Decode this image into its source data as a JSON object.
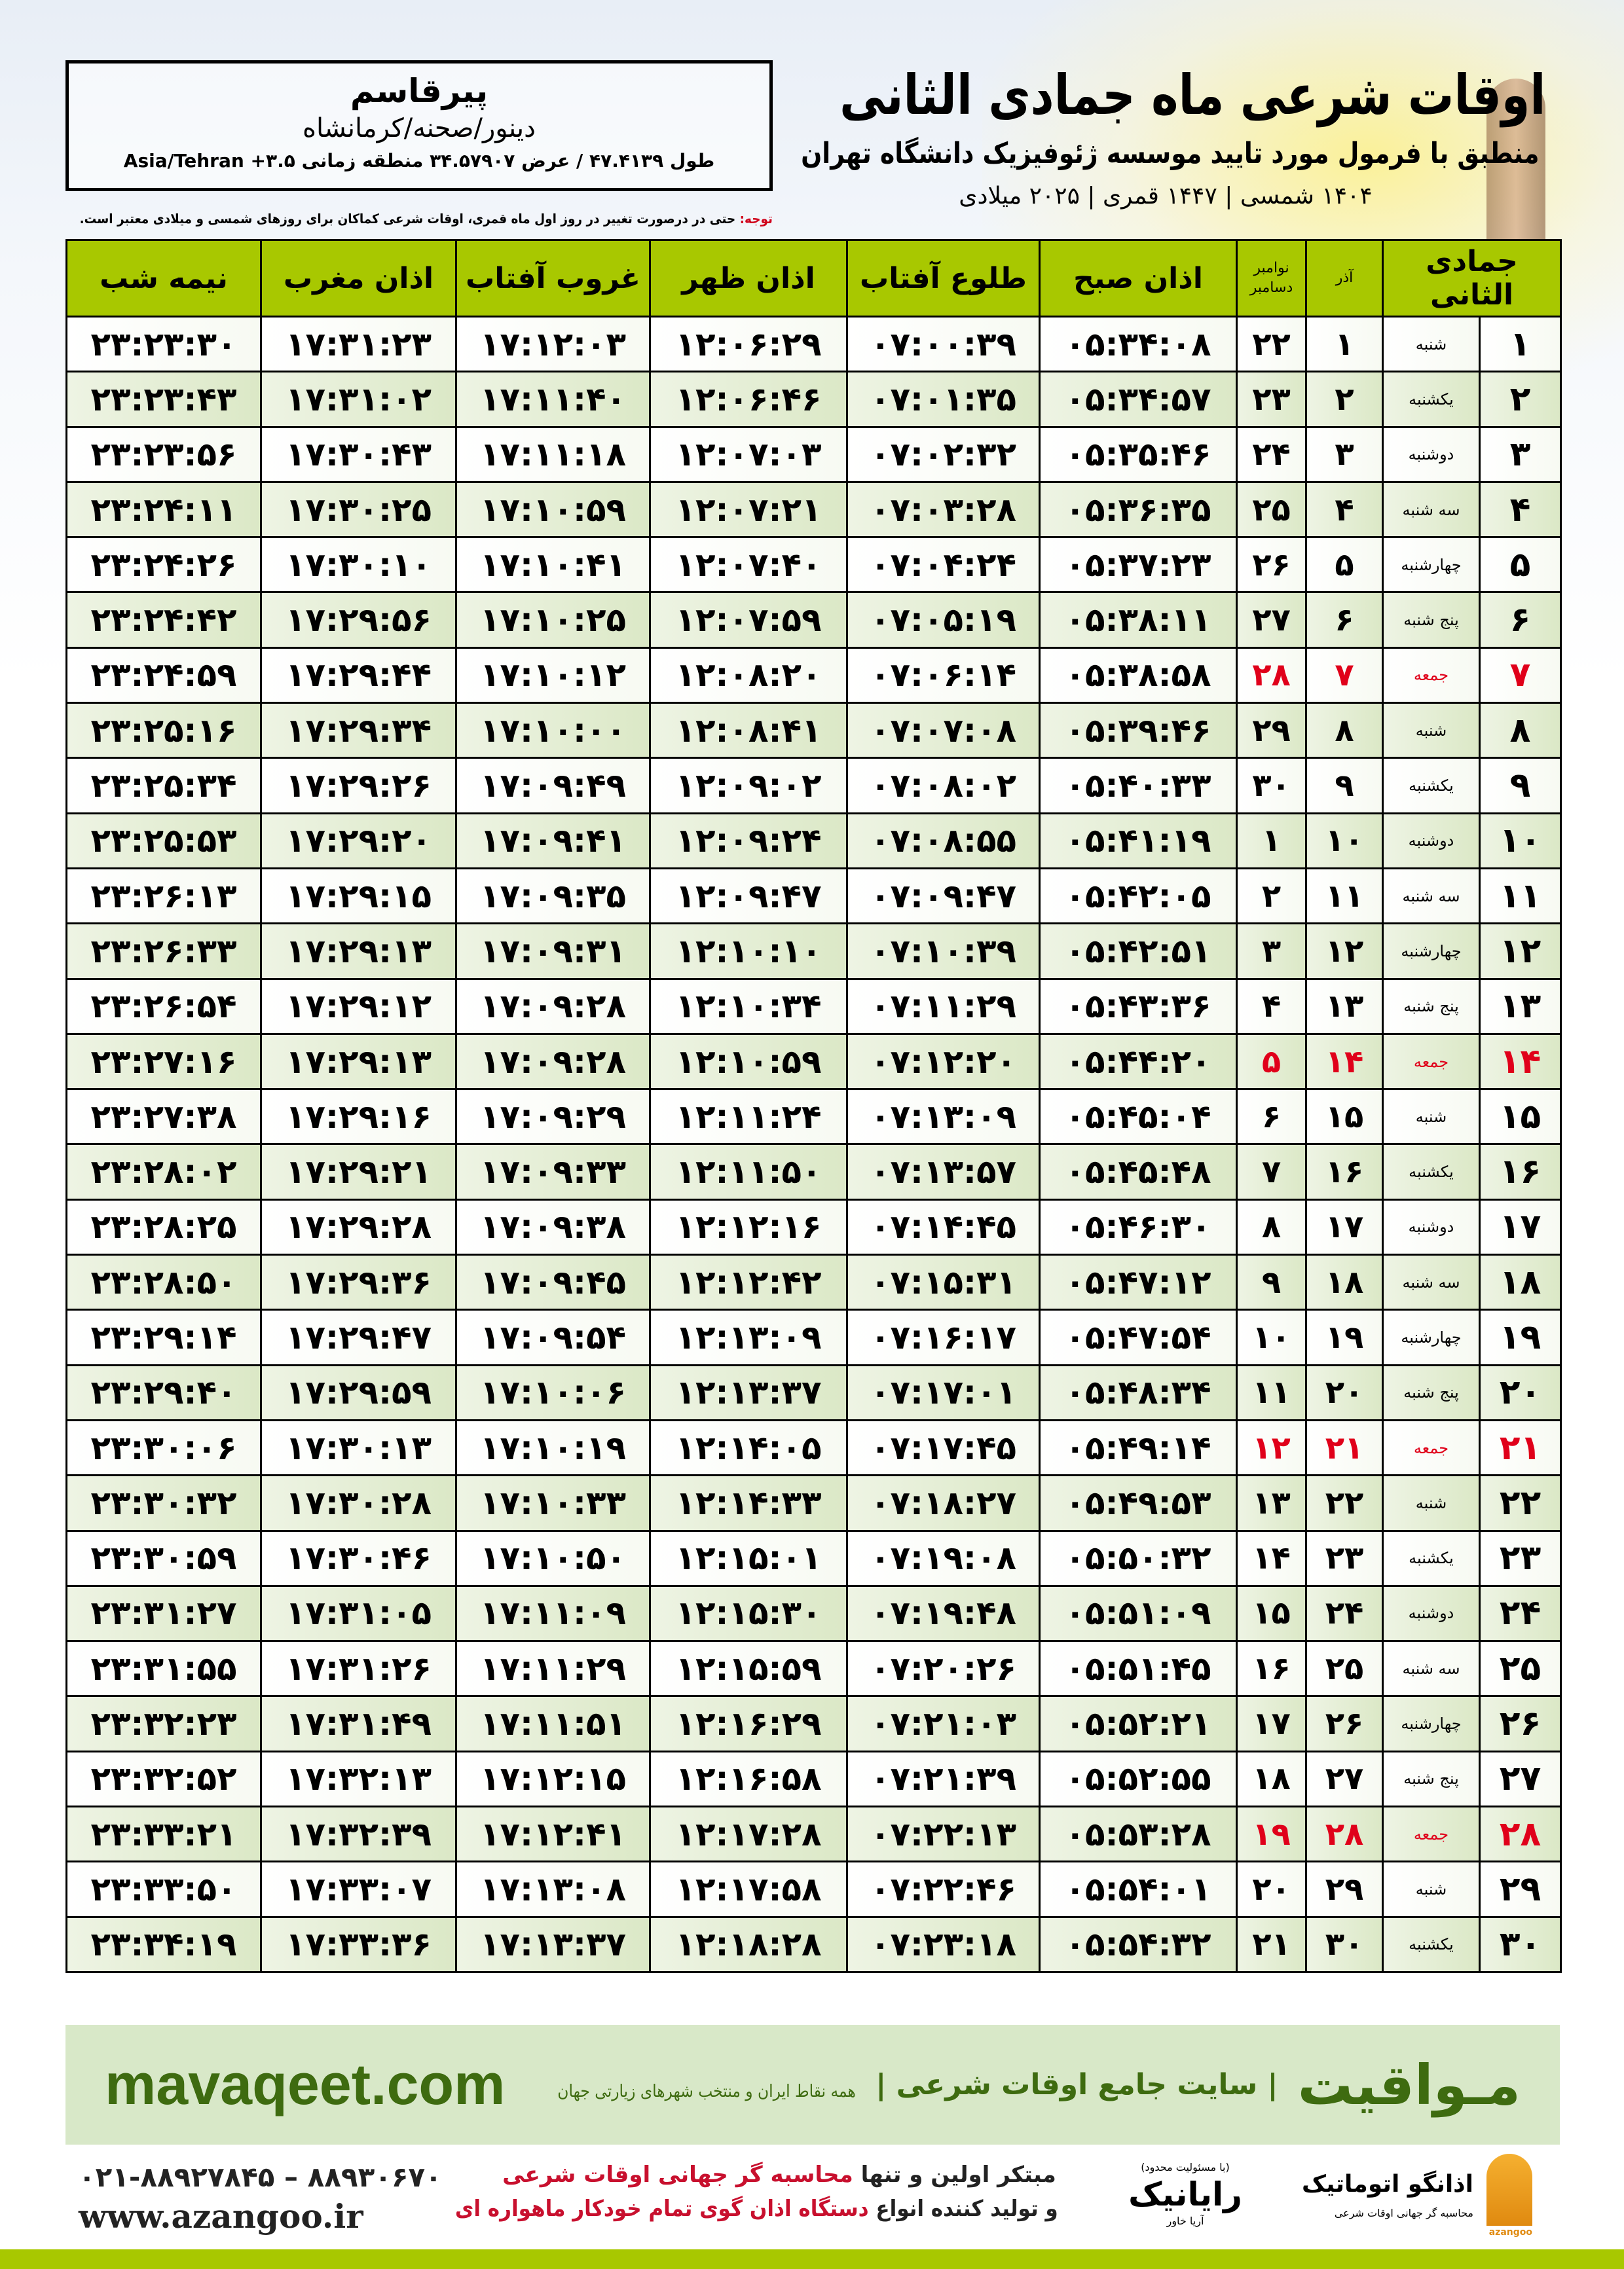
{
  "location": {
    "city": "پیرقاسم",
    "province": "دینور/صحنه/کرمانشاه",
    "coords": "طول ۴۷.۴۱۳۹ / عرض ۳۴.۵۷۹۰۷ منطقه زمانی ۳.۵+ Asia/Tehran"
  },
  "note": {
    "label": "توجه:",
    "text": " حتی در درصورت تغییر در روز اول ماه قمری، اوقات شرعی کماکان برای روزهای شمسی و میلادی معتبر است."
  },
  "header": {
    "title": "اوقات شرعی ماه جمادی الثانی",
    "subtitle": "منطبق با فرمول مورد تایید موسسه ژئوفیزیک دانشگاه تهران",
    "years": "۱۴۰۴ شمسی | ۱۴۴۷ قمری | ۲۰۲۵ میلادی"
  },
  "colors": {
    "header_green": "#a8c800",
    "holiday_red": "#e0001a",
    "brand_green": "#3e6b10"
  },
  "table": {
    "columns": {
      "hijri": "جمادی الثانی",
      "azar": "آذر",
      "greg_top": "نوامبر",
      "greg_bottom": "دسامبر",
      "fajr": "اذان صبح",
      "sunrise": "طلوع آفتاب",
      "dhuhr": "اذان ظهر",
      "sunset": "غروب آفتاب",
      "maghrib": "اذان مغرب",
      "midnight": "نیمه شب"
    },
    "rows": [
      [
        "۱",
        "شنبه",
        "۱",
        "۲۲",
        "۰۵:۳۴:۰۸",
        "۰۷:۰۰:۳۹",
        "۱۲:۰۶:۲۹",
        "۱۷:۱۲:۰۳",
        "۱۷:۳۱:۲۳",
        "۲۳:۲۳:۳۰",
        false
      ],
      [
        "۲",
        "یکشنبه",
        "۲",
        "۲۳",
        "۰۵:۳۴:۵۷",
        "۰۷:۰۱:۳۵",
        "۱۲:۰۶:۴۶",
        "۱۷:۱۱:۴۰",
        "۱۷:۳۱:۰۲",
        "۲۳:۲۳:۴۳",
        false
      ],
      [
        "۳",
        "دوشنبه",
        "۳",
        "۲۴",
        "۰۵:۳۵:۴۶",
        "۰۷:۰۲:۳۲",
        "۱۲:۰۷:۰۳",
        "۱۷:۱۱:۱۸",
        "۱۷:۳۰:۴۳",
        "۲۳:۲۳:۵۶",
        false
      ],
      [
        "۴",
        "سه شنبه",
        "۴",
        "۲۵",
        "۰۵:۳۶:۳۵",
        "۰۷:۰۳:۲۸",
        "۱۲:۰۷:۲۱",
        "۱۷:۱۰:۵۹",
        "۱۷:۳۰:۲۵",
        "۲۳:۲۴:۱۱",
        false
      ],
      [
        "۵",
        "چهارشنبه",
        "۵",
        "۲۶",
        "۰۵:۳۷:۲۳",
        "۰۷:۰۴:۲۴",
        "۱۲:۰۷:۴۰",
        "۱۷:۱۰:۴۱",
        "۱۷:۳۰:۱۰",
        "۲۳:۲۴:۲۶",
        false
      ],
      [
        "۶",
        "پنج شنبه",
        "۶",
        "۲۷",
        "۰۵:۳۸:۱۱",
        "۰۷:۰۵:۱۹",
        "۱۲:۰۷:۵۹",
        "۱۷:۱۰:۲۵",
        "۱۷:۲۹:۵۶",
        "۲۳:۲۴:۴۲",
        false
      ],
      [
        "۷",
        "جمعه",
        "۷",
        "۲۸",
        "۰۵:۳۸:۵۸",
        "۰۷:۰۶:۱۴",
        "۱۲:۰۸:۲۰",
        "۱۷:۱۰:۱۲",
        "۱۷:۲۹:۴۴",
        "۲۳:۲۴:۵۹",
        true
      ],
      [
        "۸",
        "شنبه",
        "۸",
        "۲۹",
        "۰۵:۳۹:۴۶",
        "۰۷:۰۷:۰۸",
        "۱۲:۰۸:۴۱",
        "۱۷:۱۰:۰۰",
        "۱۷:۲۹:۳۴",
        "۲۳:۲۵:۱۶",
        false
      ],
      [
        "۹",
        "یکشنبه",
        "۹",
        "۳۰",
        "۰۵:۴۰:۳۳",
        "۰۷:۰۸:۰۲",
        "۱۲:۰۹:۰۲",
        "۱۷:۰۹:۴۹",
        "۱۷:۲۹:۲۶",
        "۲۳:۲۵:۳۴",
        false
      ],
      [
        "۱۰",
        "دوشنبه",
        "۱۰",
        "۱",
        "۰۵:۴۱:۱۹",
        "۰۷:۰۸:۵۵",
        "۱۲:۰۹:۲۴",
        "۱۷:۰۹:۴۱",
        "۱۷:۲۹:۲۰",
        "۲۳:۲۵:۵۳",
        false
      ],
      [
        "۱۱",
        "سه شنبه",
        "۱۱",
        "۲",
        "۰۵:۴۲:۰۵",
        "۰۷:۰۹:۴۷",
        "۱۲:۰۹:۴۷",
        "۱۷:۰۹:۳۵",
        "۱۷:۲۹:۱۵",
        "۲۳:۲۶:۱۳",
        false
      ],
      [
        "۱۲",
        "چهارشنبه",
        "۱۲",
        "۳",
        "۰۵:۴۲:۵۱",
        "۰۷:۱۰:۳۹",
        "۱۲:۱۰:۱۰",
        "۱۷:۰۹:۳۱",
        "۱۷:۲۹:۱۳",
        "۲۳:۲۶:۳۳",
        false
      ],
      [
        "۱۳",
        "پنج شنبه",
        "۱۳",
        "۴",
        "۰۵:۴۳:۳۶",
        "۰۷:۱۱:۲۹",
        "۱۲:۱۰:۳۴",
        "۱۷:۰۹:۲۸",
        "۱۷:۲۹:۱۲",
        "۲۳:۲۶:۵۴",
        false
      ],
      [
        "۱۴",
        "جمعه",
        "۱۴",
        "۵",
        "۰۵:۴۴:۲۰",
        "۰۷:۱۲:۲۰",
        "۱۲:۱۰:۵۹",
        "۱۷:۰۹:۲۸",
        "۱۷:۲۹:۱۳",
        "۲۳:۲۷:۱۶",
        true
      ],
      [
        "۱۵",
        "شنبه",
        "۱۵",
        "۶",
        "۰۵:۴۵:۰۴",
        "۰۷:۱۳:۰۹",
        "۱۲:۱۱:۲۴",
        "۱۷:۰۹:۲۹",
        "۱۷:۲۹:۱۶",
        "۲۳:۲۷:۳۸",
        false
      ],
      [
        "۱۶",
        "یکشنبه",
        "۱۶",
        "۷",
        "۰۵:۴۵:۴۸",
        "۰۷:۱۳:۵۷",
        "۱۲:۱۱:۵۰",
        "۱۷:۰۹:۳۳",
        "۱۷:۲۹:۲۱",
        "۲۳:۲۸:۰۲",
        false
      ],
      [
        "۱۷",
        "دوشنبه",
        "۱۷",
        "۸",
        "۰۵:۴۶:۳۰",
        "۰۷:۱۴:۴۵",
        "۱۲:۱۲:۱۶",
        "۱۷:۰۹:۳۸",
        "۱۷:۲۹:۲۸",
        "۲۳:۲۸:۲۵",
        false
      ],
      [
        "۱۸",
        "سه شنبه",
        "۱۸",
        "۹",
        "۰۵:۴۷:۱۲",
        "۰۷:۱۵:۳۱",
        "۱۲:۱۲:۴۲",
        "۱۷:۰۹:۴۵",
        "۱۷:۲۹:۳۶",
        "۲۳:۲۸:۵۰",
        false
      ],
      [
        "۱۹",
        "چهارشنبه",
        "۱۹",
        "۱۰",
        "۰۵:۴۷:۵۴",
        "۰۷:۱۶:۱۷",
        "۱۲:۱۳:۰۹",
        "۱۷:۰۹:۵۴",
        "۱۷:۲۹:۴۷",
        "۲۳:۲۹:۱۴",
        false
      ],
      [
        "۲۰",
        "پنج شنبه",
        "۲۰",
        "۱۱",
        "۰۵:۴۸:۳۴",
        "۰۷:۱۷:۰۱",
        "۱۲:۱۳:۳۷",
        "۱۷:۱۰:۰۶",
        "۱۷:۲۹:۵۹",
        "۲۳:۲۹:۴۰",
        false
      ],
      [
        "۲۱",
        "جمعه",
        "۲۱",
        "۱۲",
        "۰۵:۴۹:۱۴",
        "۰۷:۱۷:۴۵",
        "۱۲:۱۴:۰۵",
        "۱۷:۱۰:۱۹",
        "۱۷:۳۰:۱۳",
        "۲۳:۳۰:۰۶",
        true
      ],
      [
        "۲۲",
        "شنبه",
        "۲۲",
        "۱۳",
        "۰۵:۴۹:۵۳",
        "۰۷:۱۸:۲۷",
        "۱۲:۱۴:۳۳",
        "۱۷:۱۰:۳۳",
        "۱۷:۳۰:۲۸",
        "۲۳:۳۰:۳۲",
        false
      ],
      [
        "۲۳",
        "یکشنبه",
        "۲۳",
        "۱۴",
        "۰۵:۵۰:۳۲",
        "۰۷:۱۹:۰۸",
        "۱۲:۱۵:۰۱",
        "۱۷:۱۰:۵۰",
        "۱۷:۳۰:۴۶",
        "۲۳:۳۰:۵۹",
        false
      ],
      [
        "۲۴",
        "دوشنبه",
        "۲۴",
        "۱۵",
        "۰۵:۵۱:۰۹",
        "۰۷:۱۹:۴۸",
        "۱۲:۱۵:۳۰",
        "۱۷:۱۱:۰۹",
        "۱۷:۳۱:۰۵",
        "۲۳:۳۱:۲۷",
        false
      ],
      [
        "۲۵",
        "سه شنبه",
        "۲۵",
        "۱۶",
        "۰۵:۵۱:۴۵",
        "۰۷:۲۰:۲۶",
        "۱۲:۱۵:۵۹",
        "۱۷:۱۱:۲۹",
        "۱۷:۳۱:۲۶",
        "۲۳:۳۱:۵۵",
        false
      ],
      [
        "۲۶",
        "چهارشنبه",
        "۲۶",
        "۱۷",
        "۰۵:۵۲:۲۱",
        "۰۷:۲۱:۰۳",
        "۱۲:۱۶:۲۹",
        "۱۷:۱۱:۵۱",
        "۱۷:۳۱:۴۹",
        "۲۳:۳۲:۲۳",
        false
      ],
      [
        "۲۷",
        "پنج شنبه",
        "۲۷",
        "۱۸",
        "۰۵:۵۲:۵۵",
        "۰۷:۲۱:۳۹",
        "۱۲:۱۶:۵۸",
        "۱۷:۱۲:۱۵",
        "۱۷:۳۲:۱۳",
        "۲۳:۳۲:۵۲",
        false
      ],
      [
        "۲۸",
        "جمعه",
        "۲۸",
        "۱۹",
        "۰۵:۵۳:۲۸",
        "۰۷:۲۲:۱۳",
        "۱۲:۱۷:۲۸",
        "۱۷:۱۲:۴۱",
        "۱۷:۳۲:۳۹",
        "۲۳:۳۳:۲۱",
        true
      ],
      [
        "۲۹",
        "شنبه",
        "۲۹",
        "۲۰",
        "۰۵:۵۴:۰۱",
        "۰۷:۲۲:۴۶",
        "۱۲:۱۷:۵۸",
        "۱۷:۱۳:۰۸",
        "۱۷:۳۳:۰۷",
        "۲۳:۳۳:۵۰",
        false
      ],
      [
        "۳۰",
        "یکشنبه",
        "۳۰",
        "۲۱",
        "۰۵:۵۴:۳۲",
        "۰۷:۲۳:۱۸",
        "۱۲:۱۸:۲۸",
        "۱۷:۱۳:۳۷",
        "۱۷:۳۳:۳۶",
        "۲۳:۳۴:۱۹",
        false
      ]
    ]
  },
  "banner": {
    "brand": "مـواقیت",
    "tagline": "| سایت جامع اوقات شرعی |",
    "tagline2": "همه نقاط ایران و منتخب شهرهای زیارتی جهان",
    "site": "mavaqeet.com"
  },
  "footer": {
    "phone": "۰۲۱-۸۸۹۲۷۸۴۵ – ۸۸۹۳۰۶۷۰",
    "web": "www.azangoo.ir",
    "promo1a": "مبتکر اولین و تنها ",
    "promo1b": "محاسبه گر جهانی اوقات شرعی",
    "promo2a": "و تولید کننده انواع ",
    "promo2b": "دستگاه اذان گوی تمام خودکار ماهواره ای",
    "logo_rayanik": "رایانیک",
    "logo_rayanik_small": "(با مسئولیت محدود)",
    "logo_rayanik_side": "آریا خاور",
    "logo_azangoo": "اذانگو اتوماتیک",
    "logo_azangoo_sub": "محاسبه گر جهانی اوقات شرعی",
    "logo_azangoo_en": "azangoo"
  }
}
